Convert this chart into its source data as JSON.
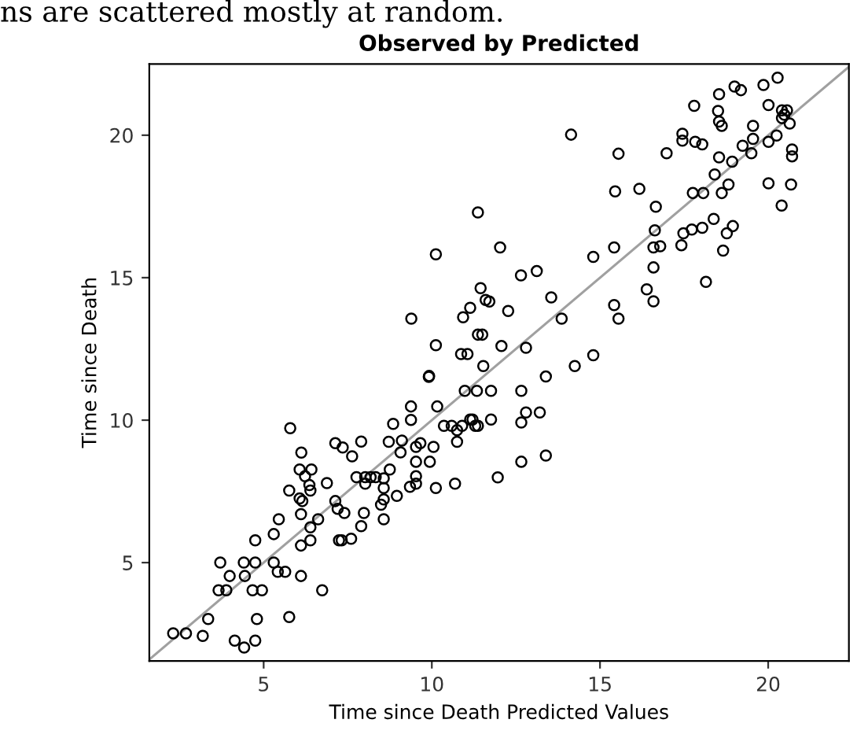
{
  "chart_data": {
    "type": "scatter",
    "title": "Observed by Predicted",
    "xlabel": "Time since Death Predicted Values",
    "ylabel": "Time since Death",
    "annotations": [
      "ns are scattered mostly at random."
    ],
    "xlim": [
      1.6,
      22.4
    ],
    "ylim": [
      1.55,
      22.5
    ],
    "xticks": [
      5,
      10,
      15,
      20
    ],
    "yticks": [
      5,
      10,
      15,
      20
    ],
    "grid": false,
    "series": [
      {
        "type": "scatter",
        "marker": "circle",
        "color": "#000000",
        "x": [
          2.31,
          2.69,
          3.19,
          3.35,
          4.14,
          4.42,
          4.75,
          3.71,
          4.41,
          4.75,
          3.99,
          4.44,
          3.66,
          3.89,
          4.67,
          4.95,
          4.8,
          5.3,
          5.42,
          5.64,
          6.11,
          4.75,
          5.3,
          5.45,
          6.11,
          6.07,
          5.76,
          6.15,
          6.11,
          6.39,
          6.62,
          6.39,
          6.12,
          5.79,
          6.07,
          6.42,
          6.23,
          6.36,
          6.39,
          6.88,
          6.74,
          5.76,
          7.13,
          7.35,
          7.63,
          7.9,
          7.13,
          7.2,
          7.4,
          7.24,
          7.32,
          7.6,
          7.9,
          7.98,
          7.76,
          8.02,
          8.18,
          8.33,
          8.57,
          8.02,
          8.57,
          8.57,
          8.49,
          8.57,
          8.96,
          8.75,
          8.72,
          8.85,
          9.11,
          9.07,
          9.38,
          9.38,
          9.53,
          9.66,
          9.53,
          9.53,
          9.53,
          9.35,
          9.94,
          10.05,
          10.12,
          10.16,
          9.91,
          10.36,
          10.59,
          10.75,
          10.75,
          10.69,
          10.9,
          11.14,
          11.37,
          10.98,
          11.34,
          11.53,
          11.76,
          12.66,
          13.39,
          14.25,
          11.21,
          11.29,
          11.76,
          11.96,
          12.66,
          13.39,
          12.66,
          12.8,
          13.21,
          11.37,
          12.03,
          14.14,
          12.65,
          13.12,
          11.45,
          11.6,
          10.93,
          11.14,
          11.37,
          11.5,
          11.06,
          11.71,
          12.27,
          12.07,
          12.8,
          14.8,
          15.42,
          16.17,
          15.45,
          16.66,
          16.63,
          16.59,
          16.79,
          17.42,
          17.48,
          17.73,
          18.04,
          18.38,
          18.95,
          18.77,
          18.66,
          18.15,
          16.59,
          16.39,
          16.59,
          15.42,
          15.55,
          14.8,
          13.86,
          13.55,
          17.76,
          18.07,
          18.62,
          18.82,
          18.41,
          18.54,
          18.93,
          19.24,
          19.5,
          19.55,
          19.55,
          20.25,
          20.01,
          20.01,
          20.68,
          20.4,
          20.71,
          20.71,
          16.98,
          15.55,
          17.45,
          17.45,
          17.83,
          18.04,
          17.8,
          18.54,
          18.51,
          18.54,
          18.62,
          19.0,
          19.19,
          19.86,
          20.28,
          20.01,
          20.41,
          20.56,
          20.48,
          20.64,
          20.41,
          10.12,
          9.39,
          10.87,
          10.12,
          9.92
        ],
        "values": [
          2.52,
          2.52,
          2.43,
          3.02,
          2.26,
          2.02,
          2.26,
          5.0,
          5.0,
          5.0,
          4.53,
          4.53,
          4.03,
          4.03,
          4.03,
          4.03,
          3.02,
          5.0,
          4.68,
          4.68,
          4.53,
          5.78,
          6.0,
          6.52,
          6.7,
          7.25,
          7.53,
          7.16,
          5.6,
          5.78,
          6.52,
          6.24,
          8.86,
          9.72,
          8.27,
          8.27,
          8.03,
          7.72,
          7.53,
          7.79,
          4.03,
          3.09,
          9.19,
          9.04,
          8.73,
          9.25,
          7.16,
          6.89,
          6.74,
          5.78,
          5.78,
          5.84,
          6.28,
          6.74,
          8.0,
          8.0,
          8.0,
          8.0,
          7.96,
          7.77,
          7.62,
          7.22,
          7.03,
          6.52,
          7.34,
          8.27,
          9.24,
          9.87,
          9.28,
          8.87,
          10.01,
          10.48,
          9.06,
          9.19,
          8.54,
          8.03,
          7.77,
          7.66,
          8.54,
          9.06,
          7.62,
          10.48,
          11.52,
          9.8,
          9.8,
          9.65,
          9.24,
          7.77,
          9.8,
          10.02,
          9.8,
          11.03,
          11.03,
          11.9,
          11.03,
          11.03,
          11.53,
          11.9,
          10.02,
          9.8,
          10.02,
          7.99,
          8.54,
          8.76,
          9.92,
          10.27,
          10.27,
          17.29,
          16.06,
          20.02,
          15.08,
          15.23,
          14.63,
          14.22,
          13.61,
          13.94,
          13.0,
          13.0,
          12.32,
          14.16,
          13.83,
          12.6,
          12.54,
          12.28,
          16.06,
          18.12,
          18.03,
          17.49,
          16.66,
          16.06,
          16.1,
          16.14,
          16.56,
          16.69,
          16.75,
          17.06,
          16.81,
          16.56,
          15.95,
          14.85,
          15.36,
          14.59,
          14.17,
          14.04,
          13.56,
          15.73,
          13.56,
          14.31,
          17.97,
          17.97,
          17.97,
          18.27,
          18.62,
          19.22,
          19.07,
          19.63,
          19.37,
          19.87,
          20.33,
          19.99,
          19.77,
          18.31,
          18.27,
          17.53,
          19.5,
          19.26,
          19.37,
          19.35,
          20.05,
          19.81,
          19.77,
          19.68,
          21.03,
          21.44,
          20.85,
          20.48,
          20.33,
          21.71,
          21.58,
          21.76,
          22.02,
          21.06,
          20.87,
          20.87,
          20.72,
          20.41,
          20.6,
          15.82,
          13.56,
          12.32,
          12.63,
          11.55
        ]
      },
      {
        "type": "line",
        "color": "#a0a0a0",
        "x": [
          1.6,
          22.4
        ],
        "values": [
          1.6,
          22.4
        ]
      }
    ]
  }
}
